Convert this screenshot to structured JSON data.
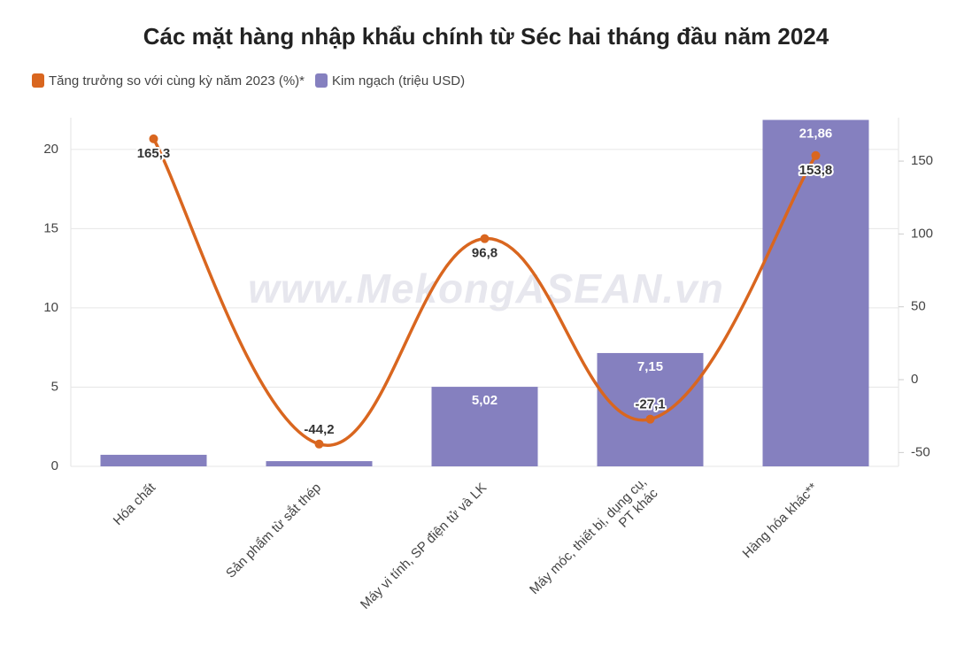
{
  "chart_data": {
    "type": "bar-line",
    "title": "Các mặt hàng nhập khẩu chính từ Séc hai tháng đầu năm 2024",
    "watermark": "www.MekongASEAN.vn",
    "categories": [
      "Hóa chất",
      "Sản phẩm từ sắt thép",
      "Máy vi tính, SP điện tử và LK",
      "Máy móc, thiết bị, dụng cụ,\nPT khác",
      "Hàng hóa khác**"
    ],
    "series": [
      {
        "name": "Tăng trưởng so với cùng kỳ năm 2023 (%)*",
        "type": "line",
        "color": "#d9661f",
        "axis": "y2",
        "values": [
          165.3,
          -44.2,
          96.8,
          -27.1,
          153.8
        ],
        "value_labels": [
          "165,3",
          "-44,2",
          "96,8",
          "-27,1",
          "153,8"
        ]
      },
      {
        "name": "Kim ngạch (triệu USD)",
        "type": "bar",
        "color": "#8580bf",
        "values": [
          0.73,
          0.33,
          5.02,
          7.15,
          21.86
        ],
        "value_labels": [
          null,
          null,
          "5,02",
          "7,15",
          "21,86"
        ]
      }
    ],
    "ylim": [
      0,
      22
    ],
    "yticks": [
      0,
      5,
      10,
      15,
      20
    ],
    "y2lim": [
      -59.5,
      179.8
    ],
    "y2ticks": [
      -50,
      0,
      50,
      100,
      150
    ],
    "grid": true
  }
}
